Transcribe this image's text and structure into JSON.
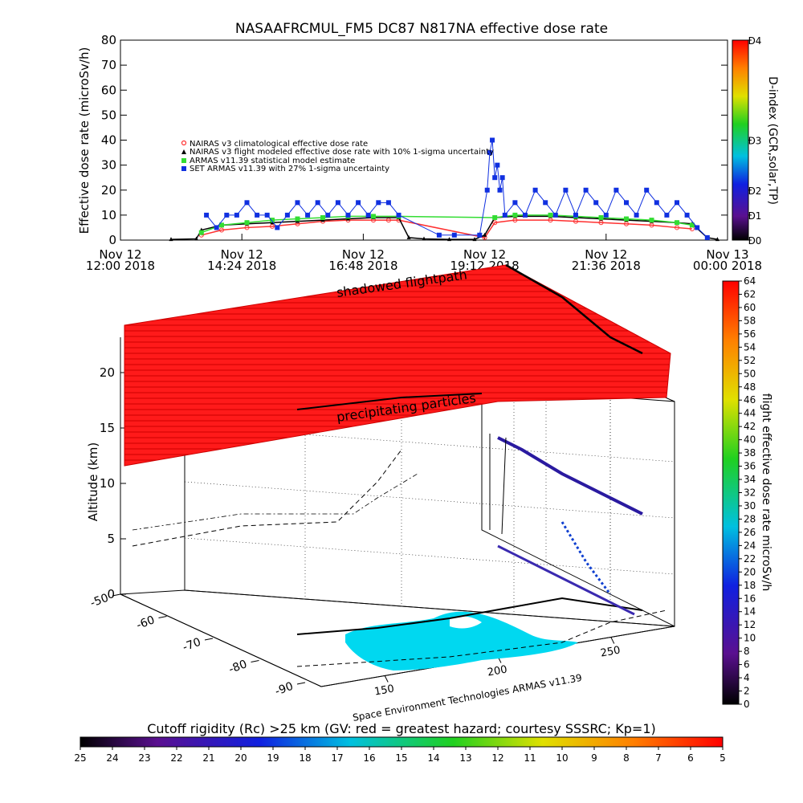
{
  "title": "NASAAFRCMUL_FM5 DC87 N817NA effective dose rate",
  "footer_credit": "Space Environment Technologies ARMAS v11.39",
  "chart_data": [
    {
      "type": "line",
      "title": "NASAAFRCMUL_FM5 DC87 N817NA effective dose rate",
      "ylabel": "Effective dose rate (microSv/h)",
      "ylim": [
        0,
        80
      ],
      "yticks": [
        "0",
        "10",
        "20",
        "30",
        "40",
        "50",
        "60",
        "70",
        "80"
      ],
      "xlim": [
        "Nov 12 12:00 2018",
        "Nov 13 00:00 2018"
      ],
      "xticks": [
        {
          "l1": "Nov 12",
          "l2": "12:00 2018",
          "hour": 12.0
        },
        {
          "l1": "Nov 12",
          "l2": "14:24 2018",
          "hour": 14.4
        },
        {
          "l1": "Nov 12",
          "l2": "16:48 2018",
          "hour": 16.8
        },
        {
          "l1": "Nov 12",
          "l2": "19:12 2018",
          "hour": 19.2
        },
        {
          "l1": "Nov 12",
          "l2": "21:36 2018",
          "hour": 21.6
        },
        {
          "l1": "Nov 13",
          "l2": "00:00 2018",
          "hour": 24.0
        }
      ],
      "legend_position": "upper-left",
      "right_axis": {
        "label": "D-index (GCR,solar,TP)",
        "ticks": [
          {
            "label": "D0",
            "v": 0
          },
          {
            "label": "D1",
            "v": 10
          },
          {
            "label": "D2",
            "v": 20
          },
          {
            "label": "D3",
            "v": 40
          },
          {
            "label": "D4",
            "v": 80
          }
        ]
      },
      "series": [
        {
          "name": "NAIRAS v3 climatological effective dose rate",
          "color": "#ff3030",
          "marker": "circle",
          "x": [
            13.6,
            14.0,
            14.5,
            15.0,
            15.5,
            16.0,
            16.5,
            17.0,
            17.3,
            17.5,
            19.2,
            19.4,
            19.8,
            20.5,
            21.0,
            21.5,
            22.0,
            22.5,
            23.0,
            23.3
          ],
          "y": [
            2,
            4,
            5,
            5.5,
            6.5,
            7.5,
            8,
            8,
            8,
            8,
            1,
            7,
            8,
            8,
            7.5,
            7,
            6.5,
            6,
            5,
            4.5
          ]
        },
        {
          "name": "NAIRAS v3 flight modeled effective dose rate with 10% 1-sigma uncertainty",
          "color": "#000000",
          "marker": "triangle",
          "x": [
            13.0,
            13.5,
            13.6,
            14.0,
            14.5,
            15.0,
            15.5,
            16.0,
            16.5,
            17.0,
            17.5,
            17.7,
            18.0,
            18.5,
            19.0,
            19.2,
            19.4,
            19.8,
            20.5,
            21.0,
            21.5,
            22.0,
            22.5,
            23.0,
            23.3,
            23.6,
            23.8
          ],
          "y": [
            0.3,
            0.5,
            4,
            6,
            6.5,
            7,
            7.5,
            8,
            8.5,
            9,
            9,
            1,
            0.5,
            0.3,
            0.3,
            2,
            9,
            9.5,
            9.5,
            9,
            8.5,
            8,
            7.5,
            7,
            6.5,
            1,
            0.3
          ]
        },
        {
          "name": "ARMAS v11.39 statistical model estimate",
          "color": "#33dd33",
          "marker": "star",
          "x": [
            13.6,
            14.0,
            14.5,
            15.0,
            15.5,
            16.0,
            16.5,
            17.0,
            17.5,
            19.4,
            19.8,
            20.5,
            21.0,
            21.5,
            22.0,
            22.5,
            23.0,
            23.3
          ],
          "y": [
            3,
            6,
            7,
            8,
            8.5,
            9,
            9.5,
            9.5,
            9.5,
            9,
            10,
            10,
            9.5,
            9,
            8.5,
            8,
            7,
            6
          ]
        },
        {
          "name": "SET ARMAS v11.39 with 27% 1-sigma uncertainty",
          "color": "#1030e0",
          "marker": "square",
          "x": [
            13.7,
            13.9,
            14.1,
            14.3,
            14.5,
            14.7,
            14.9,
            15.1,
            15.3,
            15.5,
            15.7,
            15.9,
            16.1,
            16.3,
            16.5,
            16.7,
            16.9,
            17.1,
            17.3,
            17.5,
            18.3,
            18.6,
            19.1,
            19.25,
            19.3,
            19.35,
            19.4,
            19.45,
            19.5,
            19.55,
            19.6,
            19.8,
            20.0,
            20.2,
            20.4,
            20.6,
            20.8,
            21.0,
            21.2,
            21.4,
            21.6,
            21.8,
            22.0,
            22.2,
            22.4,
            22.6,
            22.8,
            23.0,
            23.2,
            23.4,
            23.6
          ],
          "y": [
            10,
            5,
            10,
            10,
            15,
            10,
            10,
            5,
            10,
            15,
            10,
            15,
            10,
            15,
            10,
            15,
            10,
            15,
            15,
            10,
            2,
            2,
            2,
            20,
            35,
            40,
            25,
            30,
            20,
            25,
            10,
            15,
            10,
            20,
            15,
            10,
            20,
            10,
            20,
            15,
            10,
            20,
            15,
            10,
            20,
            15,
            10,
            15,
            10,
            5,
            1
          ]
        }
      ]
    },
    {
      "type": "scatter",
      "subtype": "3d-flight-track",
      "zlabel": "Altitude (km)",
      "zlim": [
        0,
        25
      ],
      "zticks": [
        "0",
        "5",
        "10",
        "15",
        "20"
      ],
      "lat_ticks": [
        "-50",
        "-60",
        "-70",
        "-80",
        "-90"
      ],
      "lon_ticks": [
        "150",
        "200",
        "250"
      ],
      "labels": {
        "shadowed": "shadowed flightpath",
        "precipitating": "precipitating particles"
      },
      "colorbar": {
        "label": "flight effective dose rate microSv/h",
        "ticks": [
          "0",
          "2",
          "4",
          "6",
          "8",
          "10",
          "12",
          "14",
          "16",
          "18",
          "20",
          "22",
          "24",
          "26",
          "28",
          "30",
          "32",
          "34",
          "36",
          "38",
          "40",
          "42",
          "44",
          "46",
          "48",
          "50",
          "52",
          "54",
          "56",
          "58",
          "60",
          "62",
          "64"
        ]
      },
      "cutoff_colorbar": {
        "label": "Cutoff rigidity (Rc) >25 km (GV: red = greatest hazard; courtesy SSSRC; Kp=1)",
        "ticks": [
          "25",
          "24",
          "23",
          "22",
          "21",
          "20",
          "19",
          "18",
          "17",
          "16",
          "15",
          "14",
          "13",
          "12",
          "11",
          "10",
          "9",
          "8",
          "7",
          "6",
          "5"
        ]
      }
    }
  ]
}
